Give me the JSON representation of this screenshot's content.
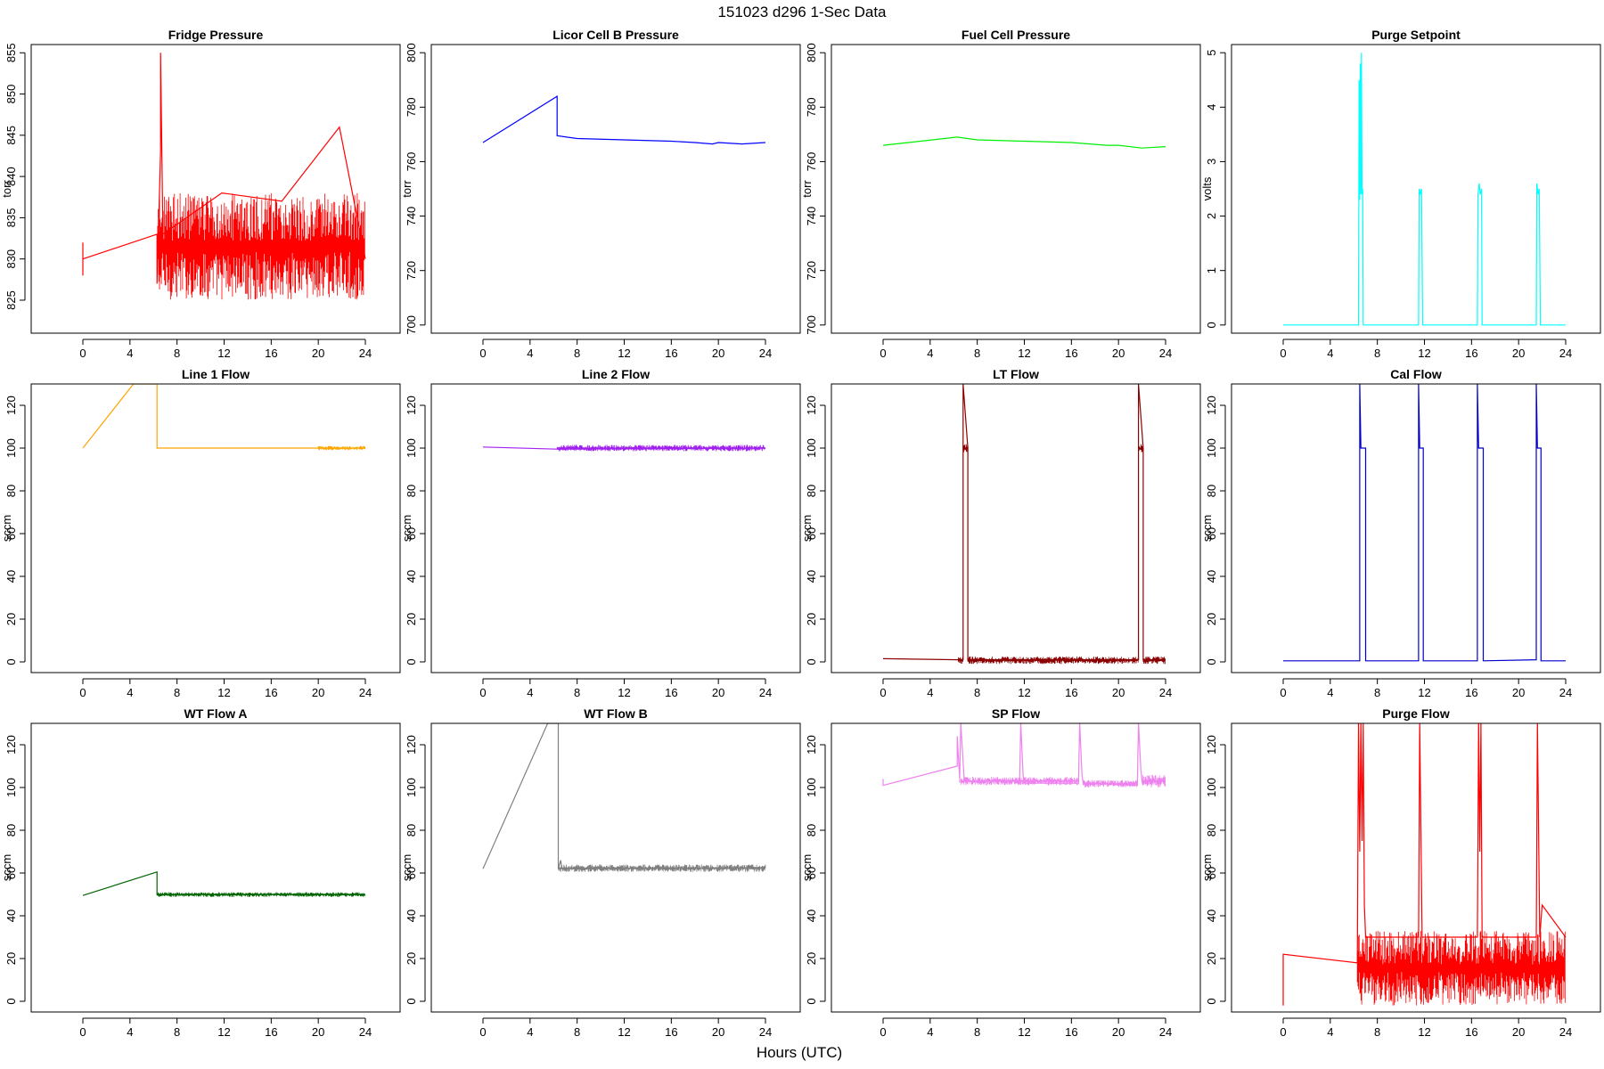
{
  "figure": {
    "title": "151023   d296   1-Sec Data",
    "xlabel": "Hours (UTC)"
  },
  "chart_data": [
    {
      "type": "line",
      "title": "Fridge Pressure",
      "ylabel": "torr",
      "color": "#ff0000",
      "xlim": [
        0,
        24
      ],
      "ylim": [
        821,
        856
      ],
      "yticks": [
        825,
        830,
        835,
        840,
        845,
        850,
        855
      ],
      "xticks": [
        0,
        4,
        8,
        12,
        16,
        20,
        24
      ],
      "series": [
        {
          "x": [
            0,
            0,
            0,
            6.3,
            6.3,
            6.6,
            6.6,
            6.8,
            11.8,
            16.9,
            21.8,
            24
          ],
          "y": [
            832,
            828,
            830,
            833,
            827,
            843,
            855,
            833,
            838,
            837,
            846,
            830
          ]
        }
      ],
      "noise_band": [
        {
          "x0": 6.3,
          "x1": 24,
          "low": 825,
          "high": 838
        }
      ]
    },
    {
      "type": "line",
      "title": "Licor Cell B Pressure",
      "ylabel": "torr",
      "color": "#0000ff",
      "xlim": [
        0,
        24
      ],
      "ylim": [
        697,
        803
      ],
      "yticks": [
        700,
        720,
        740,
        760,
        780,
        800
      ],
      "xticks": [
        0,
        4,
        8,
        12,
        16,
        20,
        24
      ],
      "series": [
        {
          "x": [
            0,
            6.3,
            6.3,
            8,
            12,
            16,
            18,
            19.5,
            20,
            22,
            24
          ],
          "y": [
            767,
            784,
            769.5,
            768.5,
            768,
            767.5,
            767,
            766.5,
            767,
            766.5,
            767
          ]
        }
      ]
    },
    {
      "type": "line",
      "title": "Fuel Cell Pressure",
      "ylabel": "torr",
      "color": "#00ee00",
      "xlim": [
        0,
        24
      ],
      "ylim": [
        697,
        803
      ],
      "yticks": [
        700,
        720,
        740,
        760,
        780,
        800
      ],
      "xticks": [
        0,
        4,
        8,
        12,
        16,
        20,
        24
      ],
      "series": [
        {
          "x": [
            0,
            6.3,
            8,
            12,
            16,
            19,
            20,
            22,
            24
          ],
          "y": [
            766,
            769,
            768,
            767.5,
            767,
            766,
            766,
            765,
            765.5
          ]
        }
      ]
    },
    {
      "type": "line",
      "title": "Purge Setpoint",
      "ylabel": "volts",
      "color": "#00ffff",
      "xlim": [
        0,
        24
      ],
      "ylim": [
        -0.15,
        5.15
      ],
      "yticks": [
        0,
        1,
        2,
        3,
        4,
        5
      ],
      "xticks": [
        0,
        4,
        8,
        12,
        16,
        20,
        24
      ],
      "series": [
        {
          "x": [
            0,
            6.4,
            6.45,
            6.5,
            6.55,
            6.6,
            6.65,
            6.7,
            6.75,
            6.8,
            6.9,
            11.5,
            11.55,
            11.65,
            11.75,
            11.85,
            16.5,
            16.55,
            16.65,
            16.75,
            16.85,
            16.9,
            21.5,
            21.55,
            21.65,
            21.75,
            21.85,
            24
          ],
          "y": [
            0,
            0,
            4.5,
            2.3,
            4.8,
            2.4,
            5.0,
            2.4,
            2.5,
            0,
            0,
            0,
            2.5,
            2.4,
            2.5,
            0,
            0,
            2.4,
            2.6,
            2.4,
            2.5,
            0,
            0,
            2.6,
            2.4,
            2.5,
            0,
            0
          ]
        }
      ]
    },
    {
      "type": "line",
      "title": "Line 1 Flow",
      "ylabel": "sccm",
      "color": "#ffa500",
      "xlim": [
        0,
        24
      ],
      "ylim": [
        -5,
        130
      ],
      "yticks": [
        0,
        20,
        40,
        60,
        80,
        100,
        120
      ],
      "xticks": [
        0,
        4,
        8,
        12,
        16,
        20,
        24
      ],
      "series": [
        {
          "x": [
            0,
            4.3,
            6.3,
            6.3,
            12,
            20,
            24
          ],
          "y": [
            100,
            130,
            130,
            100,
            100,
            100,
            100
          ]
        }
      ],
      "noise_band": [
        {
          "x0": 20,
          "x1": 24,
          "low": 99,
          "high": 101
        }
      ]
    },
    {
      "type": "line",
      "title": "Line 2 Flow",
      "ylabel": "sccm",
      "color": "#a020f0",
      "xlim": [
        0,
        24
      ],
      "ylim": [
        -5,
        130
      ],
      "yticks": [
        0,
        20,
        40,
        60,
        80,
        100,
        120
      ],
      "xticks": [
        0,
        4,
        8,
        12,
        16,
        20,
        24
      ],
      "series": [
        {
          "x": [
            0,
            6.3,
            24
          ],
          "y": [
            100.5,
            99.5,
            100
          ]
        }
      ],
      "noise_band": [
        {
          "x0": 6.3,
          "x1": 24,
          "low": 98.5,
          "high": 101.5
        }
      ]
    },
    {
      "type": "line",
      "title": "LT Flow",
      "ylabel": "sccm",
      "color": "#8b0000",
      "xlim": [
        0,
        24
      ],
      "ylim": [
        -5,
        130
      ],
      "yticks": [
        0,
        20,
        40,
        60,
        80,
        100,
        120
      ],
      "xticks": [
        0,
        4,
        8,
        12,
        16,
        20,
        24
      ],
      "series": [
        {
          "x": [
            0,
            6.4,
            6.8,
            6.8,
            7.2,
            7.2,
            21.7,
            21.7,
            22.1,
            22.1,
            24
          ],
          "y": [
            1.5,
            1,
            1,
            130,
            100,
            1,
            1,
            130,
            100,
            1,
            1
          ]
        }
      ],
      "noise_band": [
        {
          "x0": 6.4,
          "x1": 6.8,
          "low": -1,
          "high": 2.5
        },
        {
          "x0": 6.8,
          "x1": 7.2,
          "low": 98,
          "high": 102
        },
        {
          "x0": 7.2,
          "x1": 21.7,
          "low": -1,
          "high": 2.5
        },
        {
          "x0": 21.7,
          "x1": 22.1,
          "low": 98,
          "high": 102
        },
        {
          "x0": 22.1,
          "x1": 24,
          "low": -1,
          "high": 2.5
        }
      ]
    },
    {
      "type": "line",
      "title": "Cal Flow",
      "ylabel": "sccm",
      "color": "#0000cd",
      "xlim": [
        0,
        24
      ],
      "ylim": [
        -5,
        130
      ],
      "yticks": [
        0,
        20,
        40,
        60,
        80,
        100,
        120
      ],
      "xticks": [
        0,
        4,
        8,
        12,
        16,
        20,
        24
      ],
      "series": [
        {
          "x": [
            0,
            6.5,
            6.5,
            6.6,
            7.0,
            7.0,
            11.5,
            11.5,
            11.6,
            11.9,
            11.9,
            16.5,
            16.5,
            16.6,
            17.0,
            17.0,
            21.5,
            21.5,
            21.6,
            21.9,
            21.9,
            24
          ],
          "y": [
            0.5,
            0.5,
            130,
            100,
            100,
            0.5,
            0.5,
            130,
            100,
            100,
            0.5,
            0.5,
            130,
            100,
            100,
            0.5,
            1,
            130,
            100,
            100,
            0.5,
            0.5
          ]
        }
      ]
    },
    {
      "type": "line",
      "title": "WT Flow A",
      "ylabel": "sccm",
      "color": "#006400",
      "xlim": [
        0,
        24
      ],
      "ylim": [
        -5,
        130
      ],
      "yticks": [
        0,
        20,
        40,
        60,
        80,
        100,
        120
      ],
      "xticks": [
        0,
        4,
        8,
        12,
        16,
        20,
        24
      ],
      "series": [
        {
          "x": [
            0,
            6.3,
            6.3,
            24
          ],
          "y": [
            49.5,
            60.5,
            50,
            50
          ]
        }
      ],
      "noise_band": [
        {
          "x0": 6.3,
          "x1": 24,
          "low": 48.8,
          "high": 51
        }
      ]
    },
    {
      "type": "line",
      "title": "WT Flow B",
      "ylabel": "sccm",
      "color": "#808080",
      "xlim": [
        0,
        24
      ],
      "ylim": [
        -5,
        130
      ],
      "yticks": [
        0,
        20,
        40,
        60,
        80,
        100,
        120
      ],
      "xticks": [
        0,
        4,
        8,
        12,
        16,
        20,
        24
      ],
      "series": [
        {
          "x": [
            0,
            5.5,
            6.4,
            6.4,
            6.6,
            6.7,
            24
          ],
          "y": [
            62,
            130,
            130,
            62,
            66,
            62,
            62.5
          ]
        }
      ],
      "noise_band": [
        {
          "x0": 6.4,
          "x1": 24,
          "low": 60.5,
          "high": 64
        }
      ]
    },
    {
      "type": "line",
      "title": "SP Flow",
      "ylabel": "sccm",
      "color": "#ee82ee",
      "xlim": [
        0,
        24
      ],
      "ylim": [
        -5,
        130
      ],
      "yticks": [
        0,
        20,
        40,
        60,
        80,
        100,
        120
      ],
      "xticks": [
        0,
        4,
        8,
        12,
        16,
        20,
        24
      ],
      "series": [
        {
          "x": [
            0,
            0,
            6.3,
            6.3,
            6.5,
            6.6,
            6.9,
            11.6,
            11.7,
            11.9,
            12.0,
            16.6,
            16.7,
            16.9,
            17.0,
            21.6,
            21.7,
            21.9,
            22.0,
            24
          ],
          "y": [
            104,
            101,
            110,
            124,
            104,
            130,
            103,
            103,
            130,
            105,
            102,
            102,
            130,
            106,
            102,
            101,
            130,
            108,
            103,
            103
          ]
        }
      ],
      "noise_band": [
        {
          "x0": 6.5,
          "x1": 16.6,
          "low": 101,
          "high": 105
        },
        {
          "x0": 17,
          "x1": 21.6,
          "low": 100,
          "high": 103.5
        },
        {
          "x0": 22,
          "x1": 24,
          "low": 100,
          "high": 106
        }
      ]
    },
    {
      "type": "line",
      "title": "Purge Flow",
      "ylabel": "sccm",
      "color": "#ff0000",
      "xlim": [
        0,
        24
      ],
      "ylim": [
        -5,
        130
      ],
      "yticks": [
        0,
        20,
        40,
        60,
        80,
        100,
        120
      ],
      "xticks": [
        0,
        4,
        8,
        12,
        16,
        20,
        24
      ],
      "series": [
        {
          "x": [
            0,
            0,
            6.3,
            6.4,
            6.5,
            6.6,
            6.7,
            6.8,
            6.9,
            7.0,
            11.5,
            11.6,
            11.7,
            11.8,
            16.5,
            16.6,
            16.7,
            16.8,
            16.9,
            21.5,
            21.6,
            21.7,
            21.8,
            22.0,
            24
          ],
          "y": [
            -2,
            22,
            18,
            130,
            70,
            130,
            75,
            130,
            45,
            30,
            30,
            130,
            80,
            30,
            30,
            130,
            70,
            130,
            30,
            30,
            130,
            80,
            30,
            45,
            30
          ]
        }
      ],
      "noise_band": [
        {
          "x0": 6.3,
          "x1": 24,
          "low": -2,
          "high": 33
        }
      ]
    }
  ]
}
